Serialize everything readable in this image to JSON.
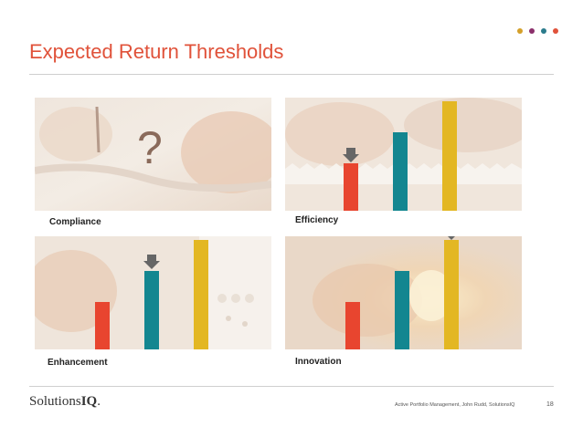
{
  "header": {
    "title": "Expected Return Thresholds",
    "accent_dots": [
      "#d4a02a",
      "#8b2f6b",
      "#2b7b8c",
      "#e0523a"
    ]
  },
  "colors": {
    "title": "#e0523a",
    "bar_red": "#e8452f",
    "bar_teal": "#138690",
    "bar_gold": "#e3b723",
    "arrow": "#666666"
  },
  "panels": [
    {
      "label": "Compliance",
      "symbol": "?",
      "thresholds": [],
      "threshold_marker": null
    },
    {
      "label": "Efficiency",
      "thresholds": [
        "low",
        "medium",
        "high"
      ],
      "threshold_marker": "low"
    },
    {
      "label": "Enhancement",
      "thresholds": [
        "low",
        "medium",
        "high"
      ],
      "threshold_marker": "medium"
    },
    {
      "label": "Innovation",
      "thresholds": [
        "low",
        "medium",
        "high"
      ],
      "threshold_marker": "high"
    }
  ],
  "footer": {
    "logo_text": "Solutions",
    "logo_suffix": "IQ",
    "logo_mark": ".",
    "credit": "Active Portfolio Management, John Rudd, SolutionsIQ",
    "page_number": "18"
  }
}
